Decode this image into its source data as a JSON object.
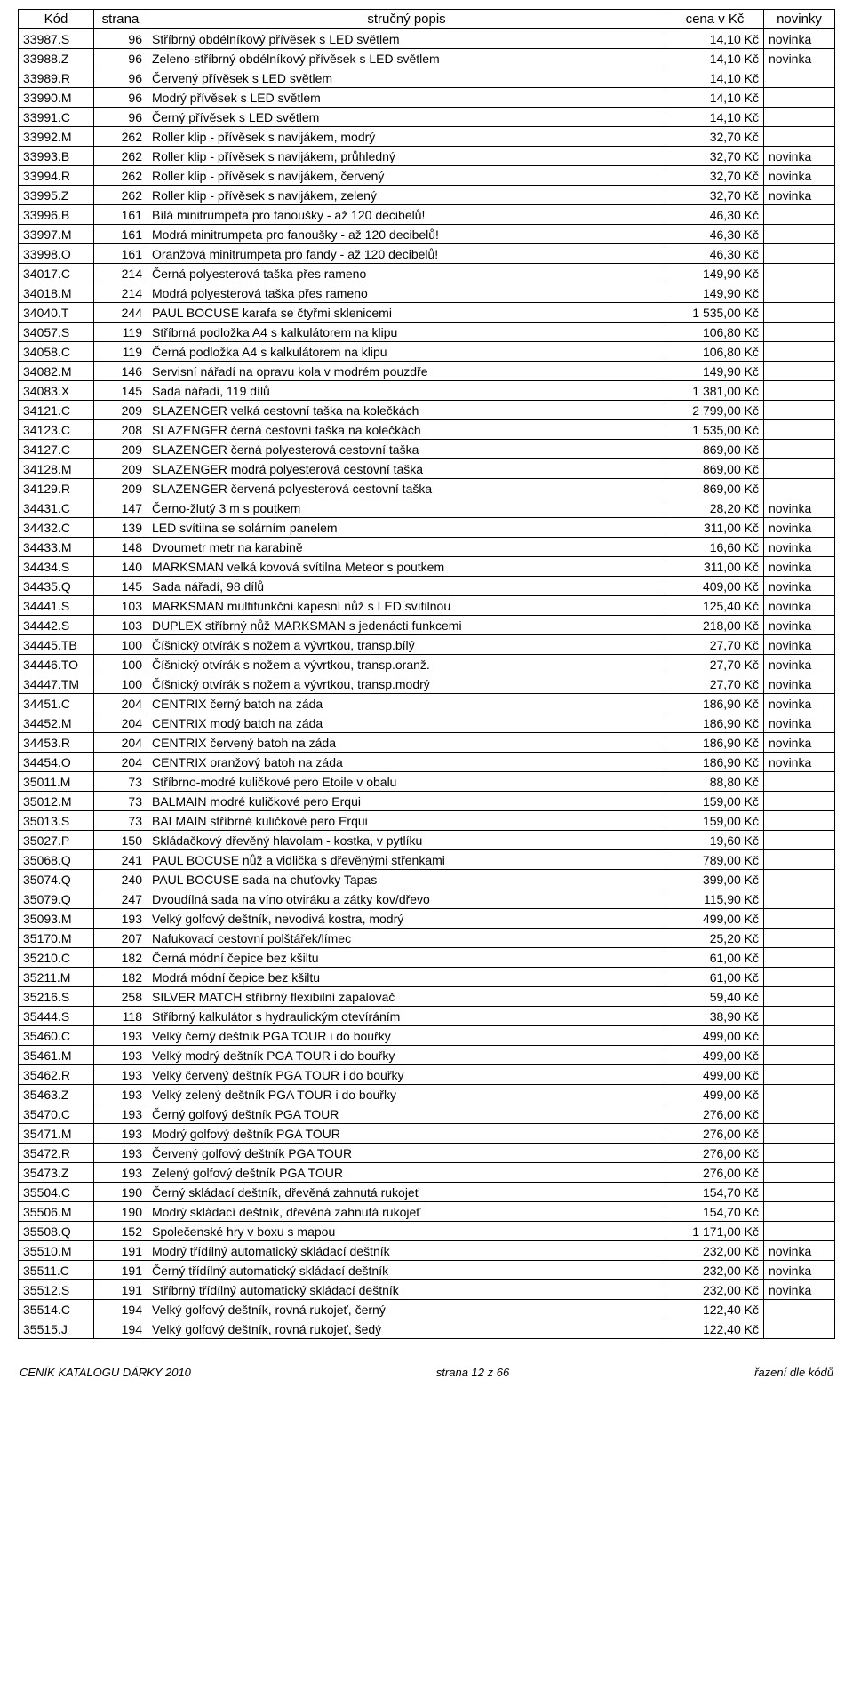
{
  "headers": {
    "kod": "Kód",
    "strana": "strana",
    "popis": "stručný popis",
    "cena": "cena v Kč",
    "novinky": "novinky"
  },
  "rows": [
    {
      "kod": "33987.S",
      "strana": "96",
      "popis": "Stříbrný obdélníkový přívěsek s LED světlem",
      "cena": "14,10 Kč",
      "nov": "novinka"
    },
    {
      "kod": "33988.Z",
      "strana": "96",
      "popis": "Zeleno-stříbrný obdélníkový přívěsek s LED světlem",
      "cena": "14,10 Kč",
      "nov": "novinka"
    },
    {
      "kod": "33989.R",
      "strana": "96",
      "popis": "Červený přívěsek s LED světlem",
      "cena": "14,10 Kč",
      "nov": ""
    },
    {
      "kod": "33990.M",
      "strana": "96",
      "popis": "Modrý přívěsek s LED světlem",
      "cena": "14,10 Kč",
      "nov": ""
    },
    {
      "kod": "33991.C",
      "strana": "96",
      "popis": "Černý přívěsek s LED světlem",
      "cena": "14,10 Kč",
      "nov": ""
    },
    {
      "kod": "33992.M",
      "strana": "262",
      "popis": "Roller klip - přívěsek s navijákem, modrý",
      "cena": "32,70 Kč",
      "nov": ""
    },
    {
      "kod": "33993.B",
      "strana": "262",
      "popis": "Roller klip - přívěsek s navijákem, průhledný",
      "cena": "32,70 Kč",
      "nov": "novinka"
    },
    {
      "kod": "33994.R",
      "strana": "262",
      "popis": "Roller klip - přívěsek s navijákem, červený",
      "cena": "32,70 Kč",
      "nov": "novinka"
    },
    {
      "kod": "33995.Z",
      "strana": "262",
      "popis": "Roller klip - přívěsek s navijákem, zelený",
      "cena": "32,70 Kč",
      "nov": "novinka"
    },
    {
      "kod": "33996.B",
      "strana": "161",
      "popis": "Bílá minitrumpeta pro fanoušky - až 120 decibelů!",
      "cena": "46,30 Kč",
      "nov": ""
    },
    {
      "kod": "33997.M",
      "strana": "161",
      "popis": "Modrá minitrumpeta pro fanoušky - až 120 decibelů!",
      "cena": "46,30 Kč",
      "nov": ""
    },
    {
      "kod": "33998.O",
      "strana": "161",
      "popis": "Oranžová minitrumpeta pro fandy - až 120 decibelů!",
      "cena": "46,30 Kč",
      "nov": ""
    },
    {
      "kod": "34017.C",
      "strana": "214",
      "popis": "Černá polyesterová taška přes rameno",
      "cena": "149,90 Kč",
      "nov": ""
    },
    {
      "kod": "34018.M",
      "strana": "214",
      "popis": "Modrá polyesterová taška přes rameno",
      "cena": "149,90 Kč",
      "nov": ""
    },
    {
      "kod": "34040.T",
      "strana": "244",
      "popis": "PAUL BOCUSE karafa se čtyřmi sklenicemi",
      "cena": "1 535,00 Kč",
      "nov": ""
    },
    {
      "kod": "34057.S",
      "strana": "119",
      "popis": "Stříbrná podložka A4 s kalkulátorem na klipu",
      "cena": "106,80 Kč",
      "nov": ""
    },
    {
      "kod": "34058.C",
      "strana": "119",
      "popis": "Černá podložka A4 s kalkulátorem na klipu",
      "cena": "106,80 Kč",
      "nov": ""
    },
    {
      "kod": "34082.M",
      "strana": "146",
      "popis": "Servisní nářadí na opravu kola v modrém pouzdře",
      "cena": "149,90 Kč",
      "nov": ""
    },
    {
      "kod": "34083.X",
      "strana": "145",
      "popis": "Sada nářadí, 119 dílů",
      "cena": "1 381,00 Kč",
      "nov": ""
    },
    {
      "kod": "34121.C",
      "strana": "209",
      "popis": "SLAZENGER velká cestovní taška na kolečkách",
      "cena": "2 799,00 Kč",
      "nov": ""
    },
    {
      "kod": "34123.C",
      "strana": "208",
      "popis": "SLAZENGER černá cestovní taška na kolečkách",
      "cena": "1 535,00 Kč",
      "nov": ""
    },
    {
      "kod": "34127.C",
      "strana": "209",
      "popis": "SLAZENGER černá polyesterová cestovní taška",
      "cena": "869,00 Kč",
      "nov": ""
    },
    {
      "kod": "34128.M",
      "strana": "209",
      "popis": "SLAZENGER modrá polyesterová cestovní taška",
      "cena": "869,00 Kč",
      "nov": ""
    },
    {
      "kod": "34129.R",
      "strana": "209",
      "popis": "SLAZENGER červená polyesterová cestovní taška",
      "cena": "869,00 Kč",
      "nov": ""
    },
    {
      "kod": "34431.C",
      "strana": "147",
      "popis": "Černo-žlutý 3 m s poutkem",
      "cena": "28,20 Kč",
      "nov": "novinka"
    },
    {
      "kod": "34432.C",
      "strana": "139",
      "popis": "LED svítilna se solárním panelem",
      "cena": "311,00 Kč",
      "nov": "novinka"
    },
    {
      "kod": "34433.M",
      "strana": "148",
      "popis": "Dvoumetr metr na karabině",
      "cena": "16,60 Kč",
      "nov": "novinka"
    },
    {
      "kod": "34434.S",
      "strana": "140",
      "popis": "MARKSMAN velká kovová svítilna Meteor s poutkem",
      "cena": "311,00 Kč",
      "nov": "novinka"
    },
    {
      "kod": "34435.Q",
      "strana": "145",
      "popis": "Sada nářadí, 98 dílů",
      "cena": "409,00 Kč",
      "nov": "novinka"
    },
    {
      "kod": "34441.S",
      "strana": "103",
      "popis": "MARKSMAN multifunkční kapesní nůž s LED svítilnou",
      "cena": "125,40 Kč",
      "nov": "novinka"
    },
    {
      "kod": "34442.S",
      "strana": "103",
      "popis": "DUPLEX stříbrný nůž MARKSMAN s jedenácti funkcemi",
      "cena": "218,00 Kč",
      "nov": "novinka"
    },
    {
      "kod": "34445.TB",
      "strana": "100",
      "popis": "Číšnický otvírák s nožem a vývrtkou, transp.bílý",
      "cena": "27,70 Kč",
      "nov": "novinka"
    },
    {
      "kod": "34446.TO",
      "strana": "100",
      "popis": "Číšnický otvírák s nožem a vývrtkou, transp.oranž.",
      "cena": "27,70 Kč",
      "nov": "novinka"
    },
    {
      "kod": "34447.TM",
      "strana": "100",
      "popis": "Číšnický otvírák s nožem a vývrtkou, transp.modrý",
      "cena": "27,70 Kč",
      "nov": "novinka"
    },
    {
      "kod": "34451.C",
      "strana": "204",
      "popis": "CENTRIX černý batoh na záda",
      "cena": "186,90 Kč",
      "nov": "novinka"
    },
    {
      "kod": "34452.M",
      "strana": "204",
      "popis": "CENTRIX modý batoh na záda",
      "cena": "186,90 Kč",
      "nov": "novinka"
    },
    {
      "kod": "34453.R",
      "strana": "204",
      "popis": "CENTRIX červený batoh na záda",
      "cena": "186,90 Kč",
      "nov": "novinka"
    },
    {
      "kod": "34454.O",
      "strana": "204",
      "popis": "CENTRIX oranžový batoh na záda",
      "cena": "186,90 Kč",
      "nov": "novinka"
    },
    {
      "kod": "35011.M",
      "strana": "73",
      "popis": "Stříbrno-modré kuličkové pero Etoile v obalu",
      "cena": "88,80 Kč",
      "nov": ""
    },
    {
      "kod": "35012.M",
      "strana": "73",
      "popis": "BALMAIN modré kuličkové pero Erqui",
      "cena": "159,00 Kč",
      "nov": ""
    },
    {
      "kod": "35013.S",
      "strana": "73",
      "popis": "BALMAIN stříbrné kuličkové pero Erqui",
      "cena": "159,00 Kč",
      "nov": ""
    },
    {
      "kod": "35027.P",
      "strana": "150",
      "popis": "Skládačkový dřevěný hlavolam - kostka, v pytlíku",
      "cena": "19,60 Kč",
      "nov": ""
    },
    {
      "kod": "35068.Q",
      "strana": "241",
      "popis": "PAUL BOCUSE nůž a vidlička s dřevěnými střenkami",
      "cena": "789,00 Kč",
      "nov": ""
    },
    {
      "kod": "35074.Q",
      "strana": "240",
      "popis": "PAUL BOCUSE sada na chuťovky Tapas",
      "cena": "399,00 Kč",
      "nov": ""
    },
    {
      "kod": "35079.Q",
      "strana": "247",
      "popis": "Dvoudílná sada na víno otviráku a zátky kov/dřevo",
      "cena": "115,90 Kč",
      "nov": ""
    },
    {
      "kod": "35093.M",
      "strana": "193",
      "popis": "Velký golfový deštník, nevodivá kostra, modrý",
      "cena": "499,00 Kč",
      "nov": ""
    },
    {
      "kod": "35170.M",
      "strana": "207",
      "popis": "Nafukovací cestovní polštářek/límec",
      "cena": "25,20 Kč",
      "nov": ""
    },
    {
      "kod": "35210.C",
      "strana": "182",
      "popis": "Černá módní čepice bez kšiltu",
      "cena": "61,00 Kč",
      "nov": ""
    },
    {
      "kod": "35211.M",
      "strana": "182",
      "popis": "Modrá módní čepice bez kšiltu",
      "cena": "61,00 Kč",
      "nov": ""
    },
    {
      "kod": "35216.S",
      "strana": "258",
      "popis": "SILVER MATCH stříbrný flexibilní zapalovač",
      "cena": "59,40 Kč",
      "nov": ""
    },
    {
      "kod": "35444.S",
      "strana": "118",
      "popis": "Stříbrný kalkulátor s hydraulickým otevíráním",
      "cena": "38,90 Kč",
      "nov": ""
    },
    {
      "kod": "35460.C",
      "strana": "193",
      "popis": "Velký černý deštník PGA TOUR i do bouřky",
      "cena": "499,00 Kč",
      "nov": ""
    },
    {
      "kod": "35461.M",
      "strana": "193",
      "popis": "Velký modrý deštník PGA TOUR i do bouřky",
      "cena": "499,00 Kč",
      "nov": ""
    },
    {
      "kod": "35462.R",
      "strana": "193",
      "popis": "Velký červený deštník PGA TOUR i do bouřky",
      "cena": "499,00 Kč",
      "nov": ""
    },
    {
      "kod": "35463.Z",
      "strana": "193",
      "popis": "Velký zelený deštník PGA TOUR i do bouřky",
      "cena": "499,00 Kč",
      "nov": ""
    },
    {
      "kod": "35470.C",
      "strana": "193",
      "popis": "Černý golfový deštník PGA TOUR",
      "cena": "276,00 Kč",
      "nov": ""
    },
    {
      "kod": "35471.M",
      "strana": "193",
      "popis": "Modrý golfový deštník PGA TOUR",
      "cena": "276,00 Kč",
      "nov": ""
    },
    {
      "kod": "35472.R",
      "strana": "193",
      "popis": "Červený golfový deštník PGA TOUR",
      "cena": "276,00 Kč",
      "nov": ""
    },
    {
      "kod": "35473.Z",
      "strana": "193",
      "popis": "Zelený golfový deštník PGA TOUR",
      "cena": "276,00 Kč",
      "nov": ""
    },
    {
      "kod": "35504.C",
      "strana": "190",
      "popis": "Černý skládací deštník, dřevěná zahnutá rukojeť",
      "cena": "154,70 Kč",
      "nov": ""
    },
    {
      "kod": "35506.M",
      "strana": "190",
      "popis": "Modrý skládací deštník, dřevěná zahnutá rukojeť",
      "cena": "154,70 Kč",
      "nov": ""
    },
    {
      "kod": "35508.Q",
      "strana": "152",
      "popis": "Společenské hry v boxu s mapou",
      "cena": "1 171,00 Kč",
      "nov": ""
    },
    {
      "kod": "35510.M",
      "strana": "191",
      "popis": "Modrý třídílný automatický skládací deštník",
      "cena": "232,00 Kč",
      "nov": "novinka"
    },
    {
      "kod": "35511.C",
      "strana": "191",
      "popis": "Černý třídílný automatický skládací deštník",
      "cena": "232,00 Kč",
      "nov": "novinka"
    },
    {
      "kod": "35512.S",
      "strana": "191",
      "popis": "Stříbrný třídílný automatický skládací deštník",
      "cena": "232,00 Kč",
      "nov": "novinka"
    },
    {
      "kod": "35514.C",
      "strana": "194",
      "popis": "Velký golfový deštník, rovná rukojeť, černý",
      "cena": "122,40 Kč",
      "nov": ""
    },
    {
      "kod": "35515.J",
      "strana": "194",
      "popis": "Velký golfový deštník, rovná rukojeť, šedý",
      "cena": "122,40 Kč",
      "nov": ""
    }
  ],
  "footer": {
    "left": "CENÍK KATALOGU DÁRKY 2010",
    "center": "strana 12 z 66",
    "right": "řazení dle kódů"
  }
}
